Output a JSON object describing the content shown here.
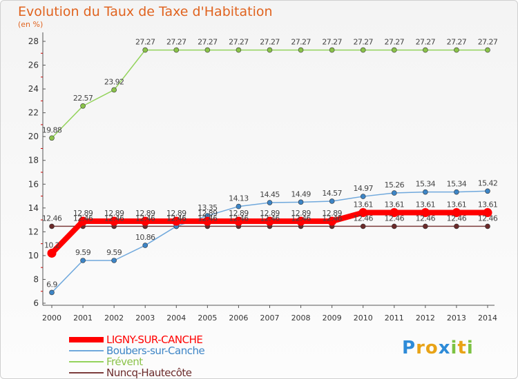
{
  "chart_data": {
    "type": "line",
    "title": "Evolution du Taux de Taxe d'Habitation",
    "subtitle": "(en %)",
    "x": [
      "2000",
      "2001",
      "2002",
      "2003",
      "2004",
      "2005",
      "2006",
      "2007",
      "2008",
      "2009",
      "2010",
      "2011",
      "2012",
      "2013",
      "2014"
    ],
    "ylim": [
      6,
      28
    ],
    "yticks": [
      6,
      8,
      10,
      12,
      14,
      16,
      18,
      20,
      22,
      24,
      26,
      28
    ],
    "grid": false,
    "legend_position": "bottom-left",
    "series": [
      {
        "name": "LIGNY-SUR-CANCHE",
        "color": "#ff0000",
        "marker": "#ff0000",
        "width": 8,
        "values": [
          10.2,
          12.89,
          12.89,
          12.89,
          12.89,
          12.89,
          12.89,
          12.89,
          12.89,
          12.89,
          13.61,
          13.61,
          13.61,
          13.61,
          13.61
        ],
        "labels": [
          "10.2",
          "12.89",
          "12.89",
          "12.89",
          "12.89",
          "12.89",
          "12.89",
          "12.89",
          "12.89",
          "12.89",
          "13.61",
          "13.61",
          "13.61",
          "13.61",
          "13.61"
        ]
      },
      {
        "name": "Boubers-sur-Canche",
        "color": "#6fa8dc",
        "marker": "#3d85c6",
        "width": 1.5,
        "values": [
          6.9,
          9.59,
          9.59,
          10.86,
          12.46,
          13.35,
          14.13,
          14.45,
          14.49,
          14.57,
          14.97,
          15.26,
          15.34,
          15.34,
          15.42
        ],
        "labels": [
          "6.9",
          "9.59",
          "9.59",
          "10.86",
          "12.46",
          "13.35",
          "14.13",
          "14.45",
          "14.49",
          "14.57",
          "14.97",
          "15.26",
          "15.34",
          "15.34",
          "15.42"
        ]
      },
      {
        "name": "Frévent",
        "color": "#93d35b",
        "marker": "#8bc34a",
        "width": 1.5,
        "values": [
          19.88,
          22.57,
          23.92,
          27.27,
          27.27,
          27.27,
          27.27,
          27.27,
          27.27,
          27.27,
          27.27,
          27.27,
          27.27,
          27.27,
          27.27
        ],
        "labels": [
          "19.88",
          "22.57",
          "23.92",
          "27.27",
          "27.27",
          "27.27",
          "27.27",
          "27.27",
          "27.27",
          "27.27",
          "27.27",
          "27.27",
          "27.27",
          "27.27",
          "27.27"
        ]
      },
      {
        "name": "Nuncq-Hautecôte",
        "color": "#7b3b3b",
        "marker": "#6b2a2a",
        "width": 1.5,
        "values": [
          12.46,
          12.46,
          12.46,
          12.46,
          12.46,
          12.46,
          12.46,
          12.46,
          12.46,
          12.46,
          12.46,
          12.46,
          12.46,
          12.46,
          12.46
        ],
        "labels": [
          "12.46",
          "12.46",
          "12.46",
          "12.46",
          "12.46",
          "12.46",
          "12.46",
          "12.46",
          "12.46",
          "12.46",
          "12.46",
          "12.46",
          "12.46",
          "12.46",
          "12.46"
        ]
      }
    ]
  },
  "brand": {
    "letters": [
      "P",
      "r",
      "o",
      "x",
      "i",
      "t",
      "i"
    ],
    "colors": [
      "#2e8bd8",
      "#e8a317",
      "#e8a317",
      "#2e8bd8",
      "#7cc242",
      "#e8a317",
      "#7cc242"
    ]
  }
}
